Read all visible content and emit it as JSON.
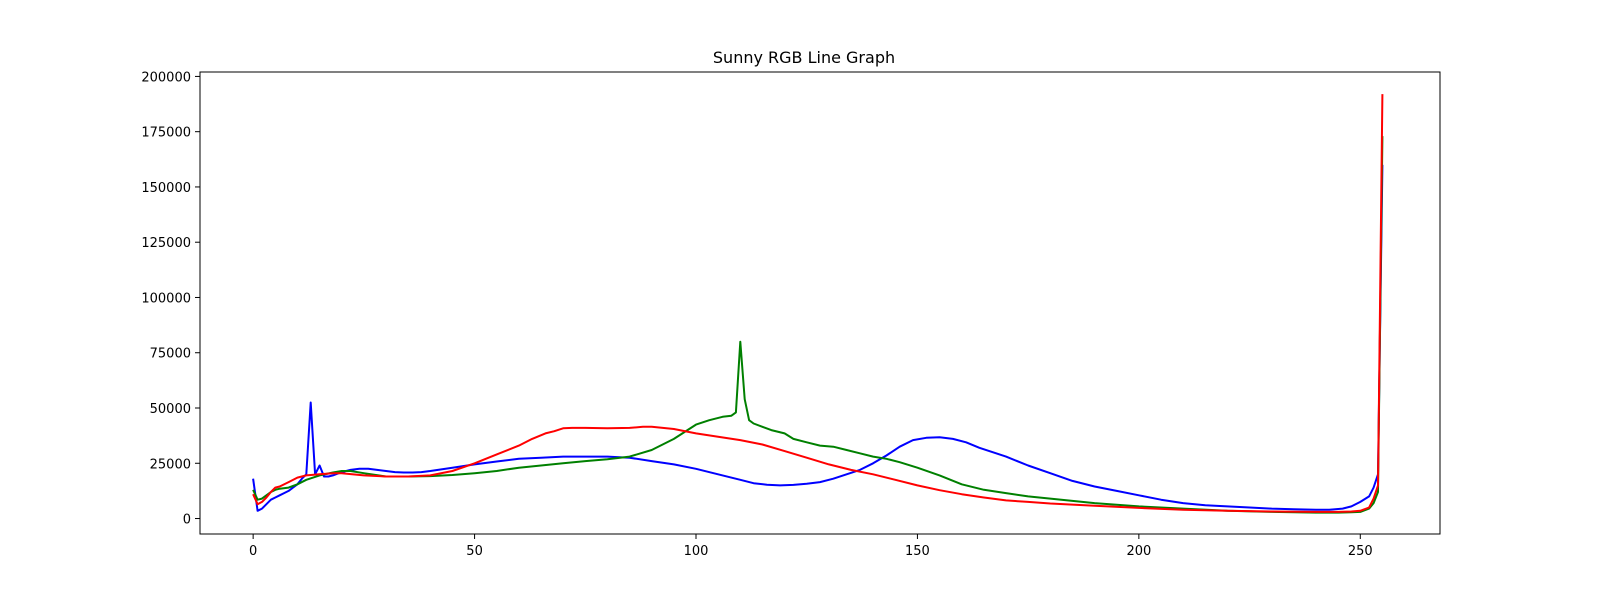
{
  "chart_data": {
    "type": "line",
    "title": "Sunny RGB Line Graph",
    "xlabel": "",
    "ylabel": "",
    "xlim": [
      -12,
      268
    ],
    "ylim": [
      -7000,
      202000
    ],
    "xticks": [
      0,
      50,
      100,
      150,
      200,
      250
    ],
    "yticks": [
      0,
      25000,
      50000,
      75000,
      100000,
      125000,
      150000,
      175000,
      200000
    ],
    "grid": false,
    "legend": "none",
    "colors": {
      "blue": "#0000ff",
      "green": "#008000",
      "red": "#ff0000",
      "frame": "#000000"
    },
    "series": [
      {
        "color": "#0000ff",
        "x": [
          0,
          1,
          2,
          3,
          4,
          5,
          6,
          7,
          8,
          9,
          10,
          11,
          12,
          13,
          14,
          15,
          16,
          17,
          18,
          20,
          22,
          24,
          26,
          28,
          30,
          32,
          34,
          36,
          38,
          40,
          45,
          50,
          55,
          60,
          65,
          70,
          75,
          80,
          85,
          90,
          95,
          100,
          105,
          110,
          113,
          116,
          119,
          122,
          125,
          128,
          131,
          134,
          137,
          140,
          143,
          146,
          149,
          152,
          155,
          158,
          161,
          164,
          167,
          170,
          175,
          180,
          185,
          190,
          195,
          200,
          205,
          210,
          215,
          220,
          225,
          230,
          235,
          240,
          243,
          246,
          248,
          250,
          252,
          253,
          254,
          255
        ],
        "values": [
          18000,
          3500,
          4500,
          6500,
          8500,
          9500,
          10500,
          11500,
          12500,
          14000,
          15500,
          18000,
          20000,
          52500,
          20000,
          24000,
          19000,
          19000,
          19500,
          21000,
          22000,
          22500,
          22500,
          22000,
          21500,
          21000,
          20800,
          20800,
          21000,
          21500,
          23000,
          24500,
          25800,
          27000,
          27500,
          28000,
          28000,
          28000,
          27500,
          26000,
          24500,
          22500,
          20000,
          17500,
          16000,
          15300,
          15000,
          15200,
          15700,
          16500,
          18000,
          20000,
          22000,
          25000,
          28500,
          32500,
          35500,
          36500,
          36800,
          36000,
          34500,
          32000,
          30000,
          28000,
          24000,
          20500,
          17000,
          14500,
          12500,
          10500,
          8500,
          7000,
          6000,
          5500,
          5000,
          4500,
          4200,
          4000,
          4000,
          4500,
          5500,
          7500,
          10000,
          14000,
          20000,
          160000
        ]
      },
      {
        "color": "#008000",
        "x": [
          0,
          1,
          2,
          3,
          4,
          5,
          6,
          8,
          10,
          12,
          15,
          18,
          20,
          22,
          25,
          30,
          35,
          40,
          45,
          50,
          55,
          60,
          65,
          70,
          75,
          80,
          85,
          90,
          95,
          100,
          103,
          106,
          108,
          109,
          110,
          111,
          112,
          113,
          115,
          117,
          120,
          122,
          125,
          128,
          131,
          134,
          137,
          140,
          143,
          146,
          150,
          155,
          160,
          165,
          170,
          175,
          180,
          190,
          200,
          210,
          220,
          230,
          240,
          245,
          248,
          250,
          252,
          253,
          254,
          255
        ],
        "values": [
          13000,
          8500,
          9000,
          10500,
          12000,
          13000,
          13500,
          14000,
          15500,
          17500,
          19500,
          20800,
          21500,
          21500,
          20500,
          19000,
          19000,
          19200,
          19700,
          20500,
          21500,
          23000,
          24000,
          25000,
          26000,
          26800,
          28000,
          31000,
          36000,
          42500,
          44500,
          46000,
          46500,
          48000,
          80000,
          54000,
          44500,
          43000,
          41500,
          40000,
          38500,
          36000,
          34500,
          33000,
          32500,
          31000,
          29500,
          28000,
          27000,
          25500,
          23000,
          19500,
          15500,
          13000,
          11500,
          10000,
          9000,
          7000,
          5500,
          4500,
          3500,
          3000,
          2700,
          2700,
          2800,
          3000,
          4500,
          7000,
          12000,
          173000
        ]
      },
      {
        "color": "#ff0000",
        "x": [
          0,
          1,
          2,
          3,
          4,
          5,
          6,
          8,
          10,
          12,
          15,
          18,
          20,
          25,
          30,
          35,
          40,
          45,
          50,
          55,
          60,
          63,
          66,
          68,
          70,
          72,
          75,
          80,
          85,
          88,
          90,
          95,
          100,
          105,
          110,
          115,
          120,
          125,
          130,
          135,
          140,
          145,
          150,
          155,
          160,
          165,
          170,
          175,
          180,
          190,
          200,
          210,
          220,
          230,
          240,
          245,
          248,
          250,
          252,
          253,
          254,
          255
        ],
        "values": [
          11000,
          6500,
          7500,
          9500,
          12000,
          14000,
          14500,
          16500,
          18500,
          19500,
          20000,
          20500,
          20500,
          19500,
          19000,
          19000,
          19500,
          21500,
          25000,
          29000,
          33000,
          36000,
          38500,
          39500,
          40800,
          41000,
          41000,
          40800,
          41000,
          41500,
          41500,
          40500,
          38500,
          37000,
          35500,
          33500,
          30500,
          27500,
          24500,
          22000,
          20000,
          17500,
          15000,
          12800,
          11000,
          9500,
          8200,
          7500,
          6800,
          5800,
          4800,
          4000,
          3500,
          3200,
          3000,
          3000,
          3200,
          3500,
          5000,
          9000,
          15000,
          192000
        ]
      }
    ]
  }
}
